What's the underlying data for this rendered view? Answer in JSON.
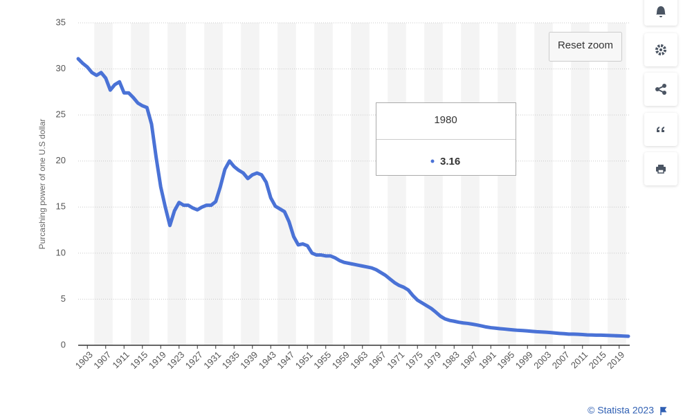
{
  "chart_data": {
    "type": "line",
    "y_label": "Purcashing power of one U.S dollar",
    "x": [
      1901,
      1902,
      1903,
      1904,
      1905,
      1906,
      1907,
      1908,
      1909,
      1910,
      1911,
      1912,
      1913,
      1914,
      1915,
      1916,
      1917,
      1918,
      1919,
      1920,
      1921,
      1922,
      1923,
      1924,
      1925,
      1926,
      1927,
      1928,
      1929,
      1930,
      1931,
      1932,
      1933,
      1934,
      1935,
      1936,
      1937,
      1938,
      1939,
      1940,
      1941,
      1942,
      1943,
      1944,
      1945,
      1946,
      1947,
      1948,
      1949,
      1950,
      1951,
      1952,
      1953,
      1954,
      1955,
      1956,
      1957,
      1958,
      1959,
      1960,
      1961,
      1962,
      1963,
      1964,
      1965,
      1966,
      1967,
      1968,
      1969,
      1970,
      1971,
      1972,
      1973,
      1974,
      1975,
      1976,
      1977,
      1978,
      1979,
      1980,
      1981,
      1982,
      1983,
      1984,
      1985,
      1986,
      1987,
      1988,
      1989,
      1990,
      1991,
      1992,
      1993,
      1994,
      1995,
      1996,
      1997,
      1998,
      1999,
      2000,
      2001,
      2002,
      2003,
      2004,
      2005,
      2006,
      2007,
      2008,
      2009,
      2010,
      2011,
      2012,
      2013,
      2014,
      2015,
      2016,
      2017,
      2018,
      2019,
      2020,
      2021
    ],
    "series": [
      {
        "name": "Purchasing power",
        "color": "#4a72d6",
        "values": [
          31.1,
          30.6,
          30.2,
          29.6,
          29.3,
          29.6,
          29.0,
          27.7,
          28.3,
          28.6,
          27.4,
          27.4,
          26.9,
          26.3,
          26.0,
          25.8,
          24.0,
          20.4,
          17.2,
          15.0,
          13.0,
          14.6,
          15.5,
          15.2,
          15.2,
          14.9,
          14.7,
          15.0,
          15.2,
          15.2,
          15.6,
          17.2,
          19.1,
          20.0,
          19.4,
          19.0,
          18.7,
          18.1,
          18.5,
          18.7,
          18.5,
          17.7,
          16.0,
          15.1,
          14.8,
          14.5,
          13.4,
          11.8,
          10.9,
          11.0,
          10.8,
          10.0,
          9.8,
          9.8,
          9.7,
          9.7,
          9.5,
          9.2,
          9.0,
          8.9,
          8.8,
          8.7,
          8.6,
          8.5,
          8.4,
          8.2,
          7.9,
          7.6,
          7.2,
          6.8,
          6.5,
          6.3,
          6.0,
          5.4,
          4.9,
          4.6,
          4.3,
          4.0,
          3.6,
          3.16,
          2.86,
          2.7,
          2.61,
          2.5,
          2.42,
          2.37,
          2.29,
          2.2,
          2.1,
          1.99,
          1.91,
          1.86,
          1.8,
          1.76,
          1.71,
          1.66,
          1.62,
          1.6,
          1.56,
          1.51,
          1.47,
          1.45,
          1.42,
          1.38,
          1.33,
          1.29,
          1.26,
          1.21,
          1.21,
          1.19,
          1.16,
          1.13,
          1.12,
          1.1,
          1.1,
          1.08,
          1.06,
          1.04,
          1.02,
          1.0,
          0.98
        ]
      }
    ],
    "xlim": [
      1901,
      2021
    ],
    "xticks": [
      1903,
      1907,
      1911,
      1915,
      1919,
      1923,
      1927,
      1931,
      1935,
      1939,
      1943,
      1947,
      1951,
      1955,
      1959,
      1963,
      1967,
      1971,
      1975,
      1979,
      1983,
      1987,
      1991,
      1995,
      1999,
      2003,
      2007,
      2011,
      2015,
      2019
    ],
    "ylim": [
      0,
      35
    ],
    "yticks": [
      0,
      5,
      10,
      15,
      20,
      25,
      30,
      35
    ],
    "grid": true,
    "tooltip_index": 79,
    "reset_zoom": "Reset zoom",
    "credit": "© Statista 2023"
  }
}
